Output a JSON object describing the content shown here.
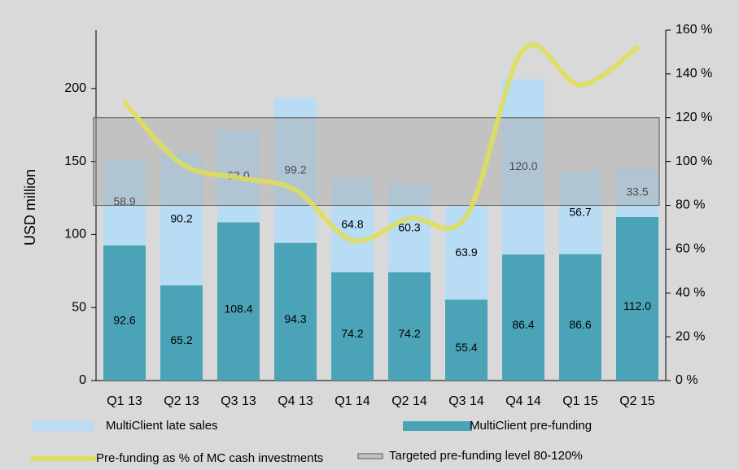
{
  "chart_data": {
    "type": "bar",
    "y_label": "USD million",
    "categories": [
      "Q1 13",
      "Q2 13",
      "Q3 13",
      "Q4 13",
      "Q1 14",
      "Q2 14",
      "Q3 14",
      "Q4 14",
      "Q1 15",
      "Q2 15"
    ],
    "stacked": true,
    "series": [
      {
        "name": "MultiClient pre-funding",
        "color": "#4ba3b7",
        "values": [
          92.6,
          65.2,
          108.4,
          94.3,
          74.2,
          74.2,
          55.4,
          86.4,
          86.6,
          112.0
        ],
        "value_labels": [
          "92.6",
          "65.2",
          "108.4",
          "94.3",
          "74.2",
          "74.2",
          "55.4",
          "86.4",
          "86.6",
          "112.0"
        ]
      },
      {
        "name": "MultiClient late sales",
        "color": "#b8dcf4",
        "values": [
          58.9,
          90.2,
          63.0,
          99.2,
          64.8,
          60.3,
          63.9,
          120.0,
          56.7,
          33.5
        ],
        "value_labels": [
          "58.9",
          "90.2",
          "63.0",
          "99.2",
          "64.8",
          "60.3",
          "63.9",
          "120.0",
          "56.7",
          "33.5"
        ]
      },
      {
        "name": "Pre-funding as % of MC cash investments",
        "type": "line",
        "axis": "y2",
        "color": "#dede5c",
        "values": [
          127,
          99,
          92.6,
          87,
          64,
          74,
          75,
          151,
          135,
          152
        ]
      }
    ],
    "band": {
      "name": "Targeted pre-funding level 80-120%",
      "axis": "y2",
      "range": [
        80,
        120
      ],
      "color": "#a6a6a6"
    },
    "ylim": [
      0,
      240
    ],
    "yticks": [
      0,
      50,
      100,
      150,
      200
    ],
    "y2lim": [
      0,
      160
    ],
    "y2ticks": [
      {
        "value": 0,
        "label": "0 %"
      },
      {
        "value": 20,
        "label": "20 %"
      },
      {
        "value": 40,
        "label": "40 %"
      },
      {
        "value": 60,
        "label": "60 %"
      },
      {
        "value": 80,
        "label": "80 %"
      },
      {
        "value": 100,
        "label": "100 %"
      },
      {
        "value": 120,
        "label": "120 %"
      },
      {
        "value": 140,
        "label": "140 %"
      },
      {
        "value": 160,
        "label": "160 %"
      }
    ]
  }
}
